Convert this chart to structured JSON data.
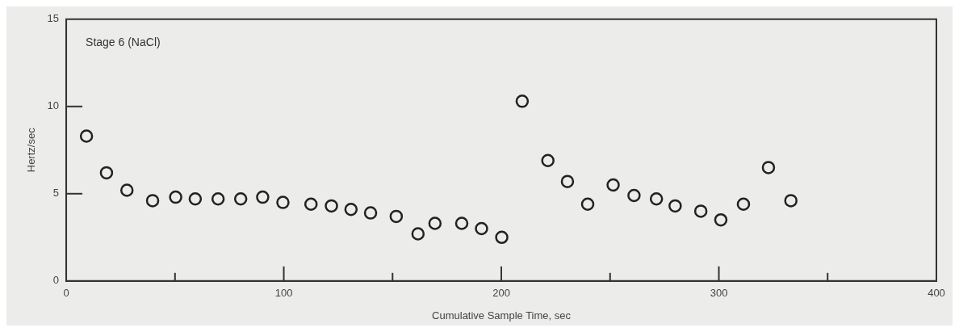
{
  "chart_data": {
    "type": "scatter",
    "xlabel": "Cumulative Sample Time, sec",
    "ylabel": "Hertz/sec",
    "annotations": [
      "Stage 6 (NaCl)"
    ],
    "xlim": [
      0,
      400
    ],
    "xticks": [
      0,
      {
        "value": 50,
        "label": null
      },
      100,
      {
        "value": 150,
        "label": null
      },
      200,
      {
        "value": 250,
        "label": null
      },
      300,
      {
        "value": 350,
        "label": null
      },
      400
    ],
    "ylim": [
      0,
      15
    ],
    "yticks": [
      0,
      5,
      10,
      15
    ],
    "grid": false,
    "legend": false,
    "marker": "circle",
    "series": [
      {
        "color": "#222222",
        "x": [
          9.3,
          18.5,
          27.9,
          39.7,
          50.3,
          59.3,
          69.8,
          80.2,
          90.3,
          99.6,
          112.5,
          121.9,
          130.9,
          139.9,
          151.7,
          161.7,
          169.5,
          181.8,
          190.9,
          200.2,
          209.6,
          221.4,
          230.4,
          239.7,
          251.4,
          261,
          271.3,
          279.9,
          291.7,
          300.9,
          311.3,
          322.8,
          333.1
        ],
        "values": [
          8.3,
          6.2,
          5.2,
          4.6,
          4.8,
          4.7,
          4.7,
          4.7,
          4.8,
          4.5,
          4.4,
          4.3,
          4.1,
          3.9,
          3.7,
          2.7,
          3.3,
          3.3,
          3.0,
          2.5,
          10.3,
          6.9,
          5.7,
          4.4,
          5.5,
          4.9,
          4.7,
          4.3,
          4.0,
          3.5,
          4.4,
          6.5,
          4.6
        ]
      }
    ]
  }
}
